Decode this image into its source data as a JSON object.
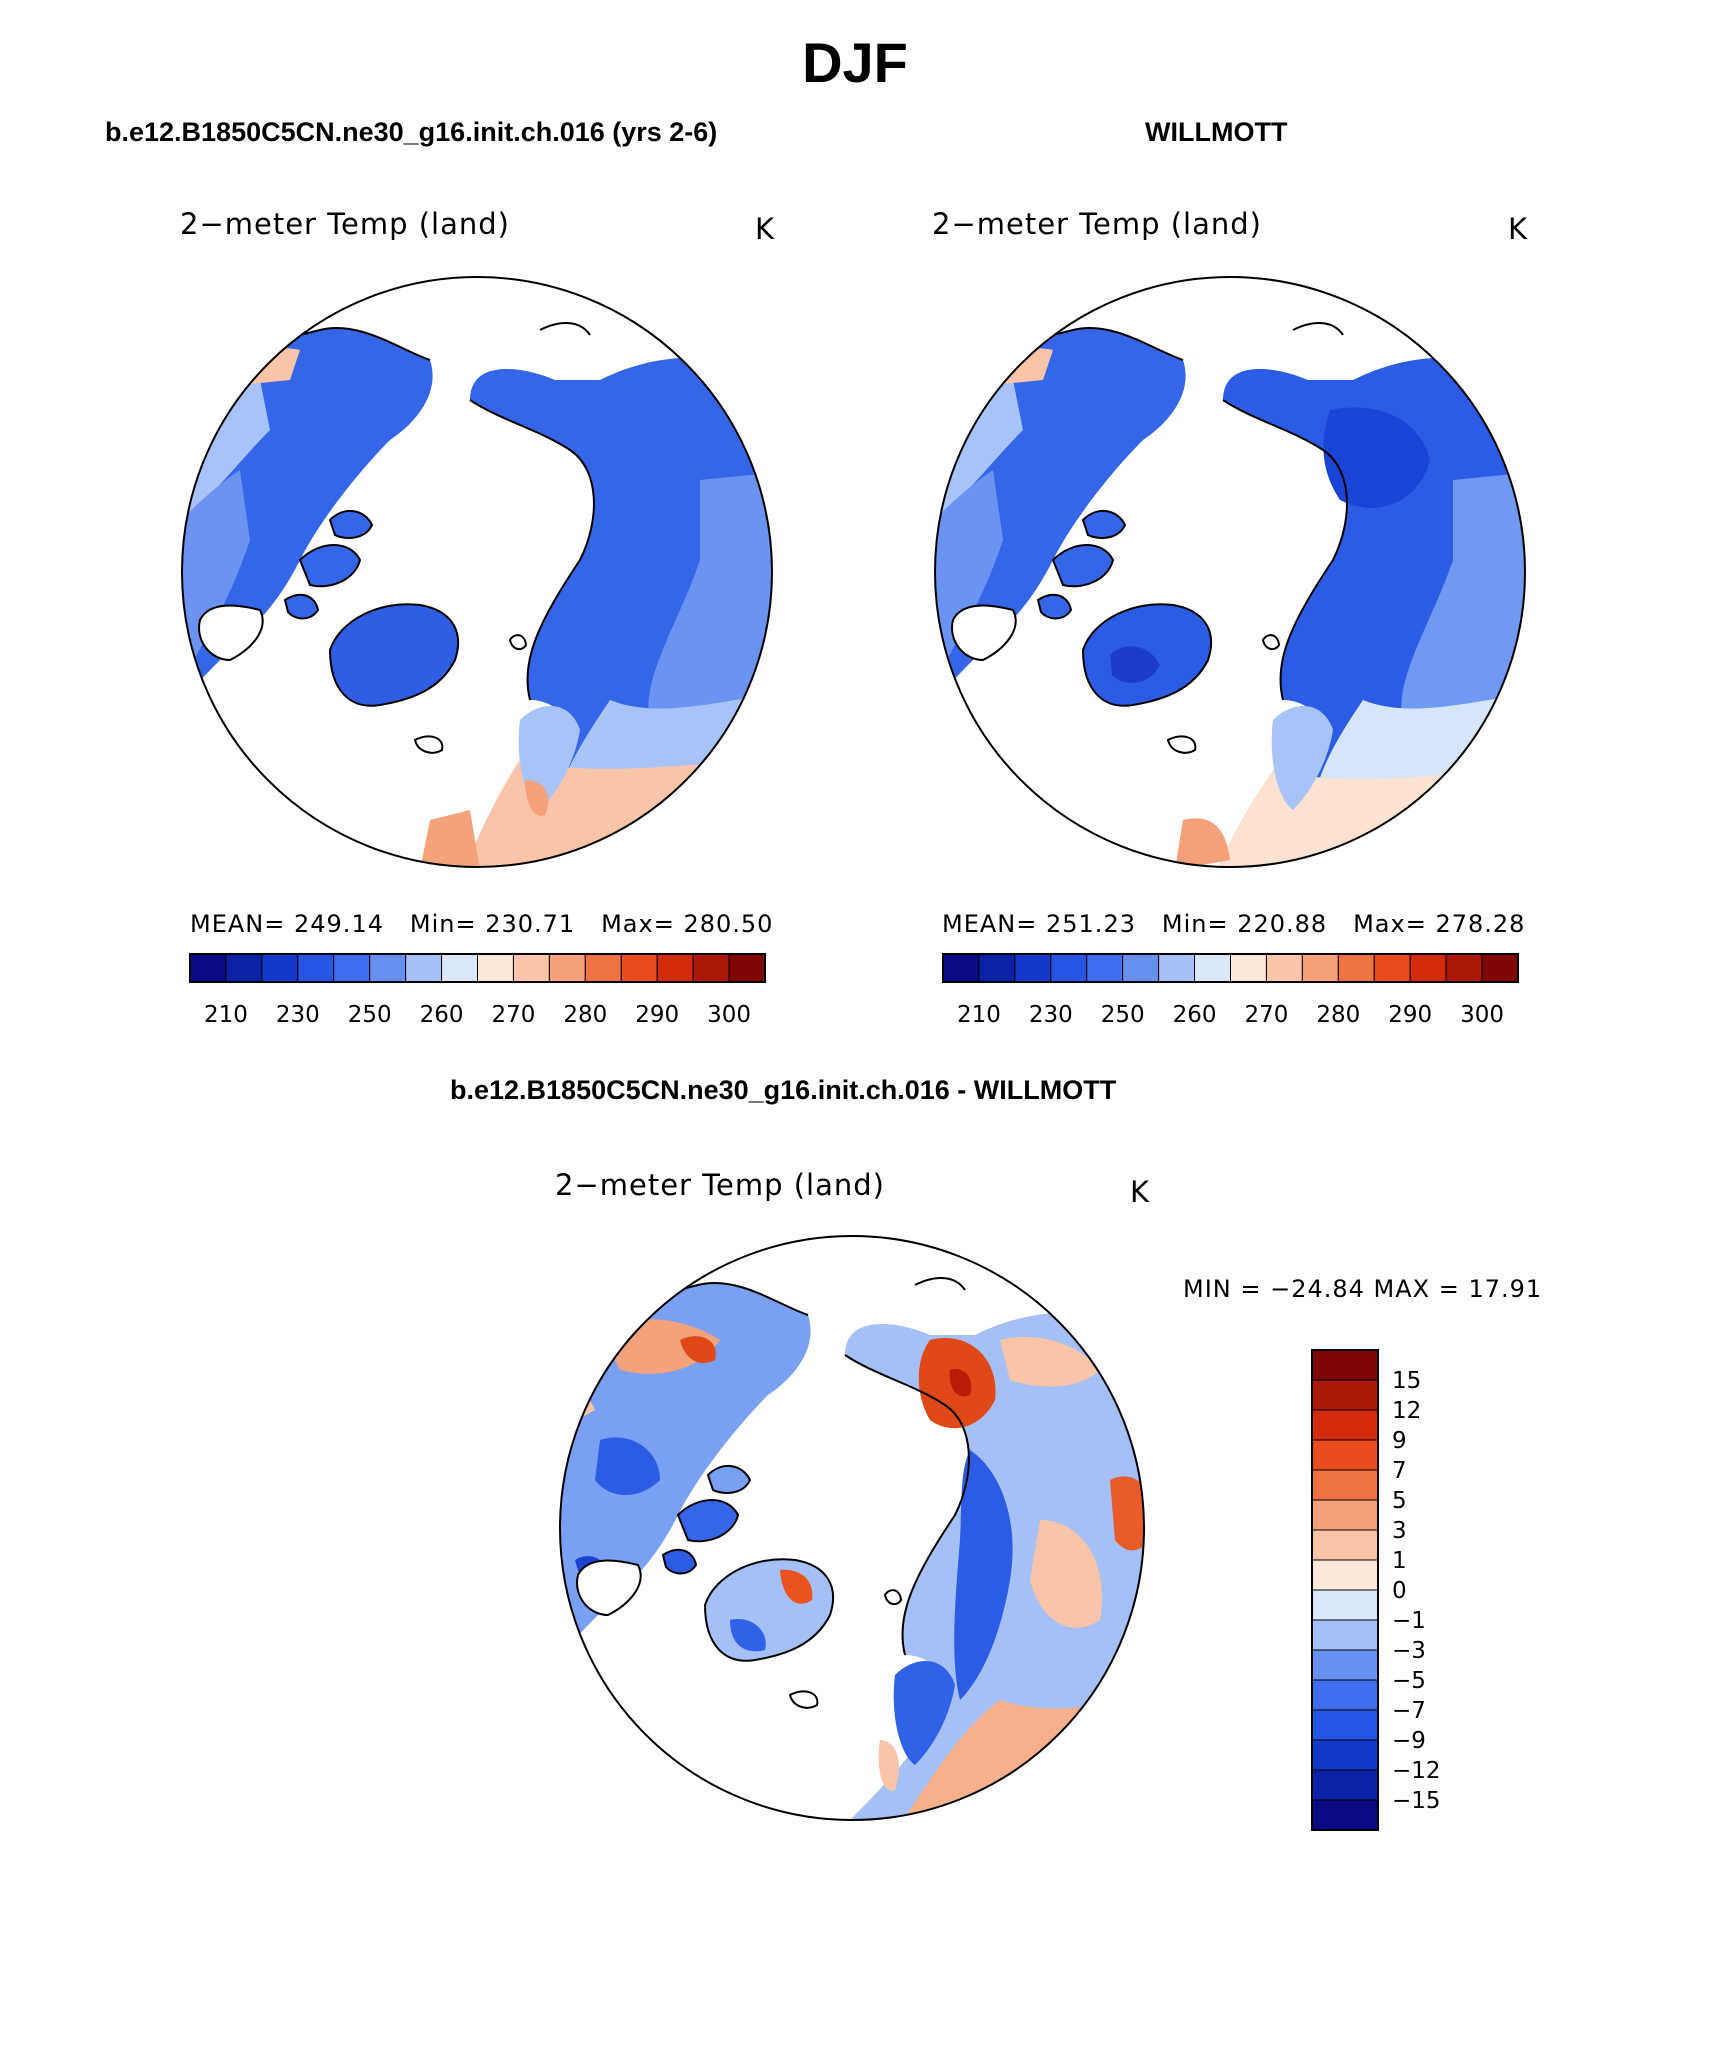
{
  "figure": {
    "season": "DJF"
  },
  "panels": [
    {
      "dataset": "b.e12.B1850C5CN.ne30_g16.init.ch.016 (yrs 2-6)",
      "variable": "2−meter Temp (land)",
      "units": "K",
      "stats": {
        "mean_label": "MEAN=",
        "mean": "249.14",
        "min_label": "Min=",
        "min": "230.71",
        "max_label": "Max=",
        "max": "280.50"
      }
    },
    {
      "dataset": "WILLMOTT",
      "variable": "2−meter Temp (land)",
      "units": "K",
      "stats": {
        "mean_label": "MEAN=",
        "mean": "251.23",
        "min_label": "Min=",
        "min": "220.88",
        "max_label": "Max=",
        "max": "278.28"
      }
    },
    {
      "dataset": "b.e12.B1850C5CN.ne30_g16.init.ch.016 - WILLMOTT",
      "variable": "2−meter Temp (land)",
      "units": "K",
      "minmax_text": "MIN = −24.84 MAX =   17.91"
    }
  ],
  "colorbar_abs": {
    "ticks": [
      "210",
      "230",
      "250",
      "260",
      "270",
      "280",
      "290",
      "300"
    ],
    "colors": [
      "#0a0a82",
      "#0c22a6",
      "#1238c8",
      "#2656e6",
      "#3f6ef0",
      "#6690f2",
      "#a4c0f6",
      "#dbe8fb",
      "#fde8da",
      "#f9c4a8",
      "#f5a07a",
      "#f07442",
      "#ea4c1e",
      "#d42b0d",
      "#ac1908",
      "#7d0505"
    ]
  },
  "colorbar_diff": {
    "labels": [
      "15",
      "12",
      "9",
      "7",
      "5",
      "3",
      "1",
      "0",
      "−1",
      "−3",
      "−5",
      "−7",
      "−9",
      "−12",
      "−15"
    ],
    "colors": [
      "#7d0505",
      "#ac1908",
      "#d42b0d",
      "#ea4c1e",
      "#f07442",
      "#f5a07a",
      "#f9c4a8",
      "#fde8da",
      "#dbe8fb",
      "#a4c0f6",
      "#6690f2",
      "#3f6ef0",
      "#2656e6",
      "#1238c8",
      "#0c22a6",
      "#0a0a82"
    ]
  },
  "palette": {
    "land_cold": "#2f62e6",
    "land_mid": "#4d7ff0",
    "land_light": "#a4c0f6",
    "land_warm": "#f3a27c",
    "diff_warm": "#e8521f",
    "ocean": "#ffffff",
    "coast": "#000000"
  }
}
